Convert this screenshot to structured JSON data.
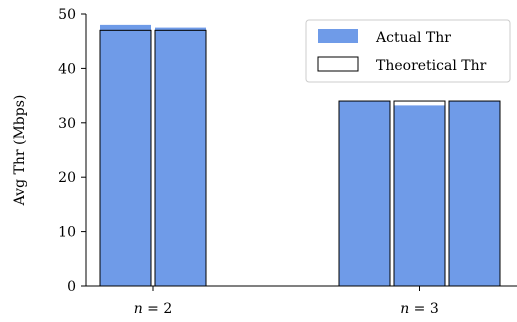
{
  "chart_data": {
    "type": "bar",
    "ylabel": "Avg Thr (Mbps)",
    "ylim": [
      0,
      50
    ],
    "yticks": [
      0,
      10,
      20,
      30,
      40,
      50
    ],
    "legend_position": "top-right",
    "actual_color": "#6f9be8",
    "groups": [
      {
        "label_var": "n",
        "label_rest": " = 2",
        "bars": [
          {
            "actual": 48.0,
            "theoretical": 47.0
          },
          {
            "actual": 47.5,
            "theoretical": 47.0
          }
        ]
      },
      {
        "label_var": "n",
        "label_rest": " = 3",
        "bars": [
          {
            "actual": 34.0,
            "theoretical": 34.0
          },
          {
            "actual": 33.2,
            "theoretical": 34.0
          },
          {
            "actual": 34.0,
            "theoretical": 34.0
          }
        ]
      }
    ],
    "series": [
      {
        "name": "Actual Thr"
      },
      {
        "name": "Theoretical Thr"
      }
    ]
  }
}
